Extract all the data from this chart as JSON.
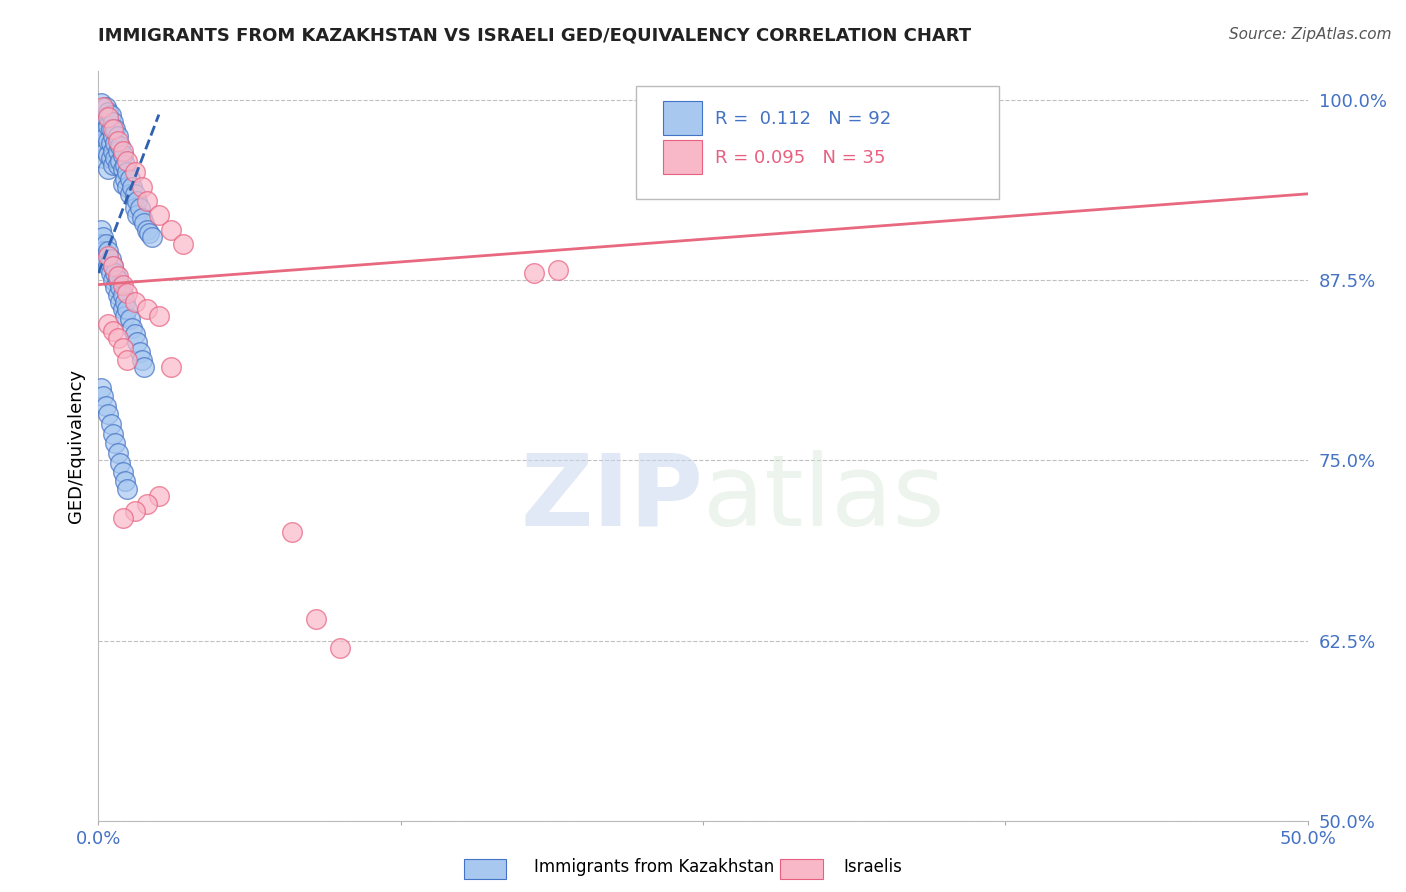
{
  "title": "IMMIGRANTS FROM KAZAKHSTAN VS ISRAELI GED/EQUIVALENCY CORRELATION CHART",
  "source_text": "Source: ZipAtlas.com",
  "ylabel": "GED/Equivalency",
  "xlim": [
    0.0,
    0.5
  ],
  "ylim": [
    0.5,
    1.02
  ],
  "xticks": [
    0.0,
    0.125,
    0.25,
    0.375,
    0.5
  ],
  "xticklabels": [
    "0.0%",
    "",
    "",
    "",
    "50.0%"
  ],
  "yticks": [
    0.5,
    0.625,
    0.75,
    0.875,
    1.0
  ],
  "yticklabels": [
    "50.0%",
    "62.5%",
    "75.0%",
    "87.5%",
    "100.0%"
  ],
  "watermark_zip": "ZIP",
  "watermark_atlas": "atlas",
  "blue_color": "#a8c8f0",
  "blue_edge_color": "#4472c4",
  "pink_color": "#f8b8c8",
  "pink_edge_color": "#e86080",
  "blue_line_color": "#3060b0",
  "pink_line_color": "#e86880",
  "grid_color": "#c0c0c0",
  "axis_label_color": "#4472c4",
  "title_color": "#222222",
  "source_color": "#555555",
  "blue_scatter_x": [
    0.001,
    0.001,
    0.002,
    0.002,
    0.002,
    0.003,
    0.003,
    0.003,
    0.003,
    0.004,
    0.004,
    0.004,
    0.004,
    0.004,
    0.005,
    0.005,
    0.005,
    0.005,
    0.006,
    0.006,
    0.006,
    0.006,
    0.007,
    0.007,
    0.007,
    0.008,
    0.008,
    0.008,
    0.009,
    0.009,
    0.01,
    0.01,
    0.01,
    0.011,
    0.011,
    0.012,
    0.012,
    0.013,
    0.013,
    0.014,
    0.015,
    0.015,
    0.016,
    0.016,
    0.017,
    0.018,
    0.019,
    0.02,
    0.021,
    0.022,
    0.001,
    0.001,
    0.002,
    0.002,
    0.003,
    0.003,
    0.004,
    0.004,
    0.005,
    0.005,
    0.006,
    0.006,
    0.007,
    0.007,
    0.008,
    0.008,
    0.009,
    0.009,
    0.01,
    0.01,
    0.011,
    0.011,
    0.012,
    0.013,
    0.014,
    0.015,
    0.016,
    0.017,
    0.018,
    0.019,
    0.001,
    0.002,
    0.003,
    0.004,
    0.005,
    0.006,
    0.007,
    0.008,
    0.009,
    0.01,
    0.011,
    0.012
  ],
  "blue_scatter_y": [
    0.998,
    0.985,
    0.978,
    0.97,
    0.96,
    0.995,
    0.988,
    0.975,
    0.965,
    0.992,
    0.982,
    0.972,
    0.962,
    0.952,
    0.99,
    0.98,
    0.97,
    0.96,
    0.985,
    0.975,
    0.965,
    0.955,
    0.98,
    0.97,
    0.96,
    0.975,
    0.965,
    0.955,
    0.968,
    0.958,
    0.962,
    0.952,
    0.942,
    0.955,
    0.945,
    0.95,
    0.94,
    0.945,
    0.935,
    0.94,
    0.935,
    0.925,
    0.93,
    0.92,
    0.925,
    0.918,
    0.915,
    0.91,
    0.908,
    0.905,
    0.91,
    0.9,
    0.905,
    0.895,
    0.9,
    0.89,
    0.895,
    0.885,
    0.89,
    0.88,
    0.885,
    0.875,
    0.88,
    0.87,
    0.875,
    0.865,
    0.87,
    0.86,
    0.865,
    0.855,
    0.86,
    0.85,
    0.855,
    0.848,
    0.842,
    0.838,
    0.832,
    0.825,
    0.82,
    0.815,
    0.8,
    0.795,
    0.788,
    0.782,
    0.775,
    0.768,
    0.762,
    0.755,
    0.748,
    0.742,
    0.736,
    0.73
  ],
  "pink_scatter_x": [
    0.002,
    0.004,
    0.006,
    0.008,
    0.01,
    0.012,
    0.015,
    0.018,
    0.02,
    0.025,
    0.03,
    0.035,
    0.004,
    0.006,
    0.008,
    0.01,
    0.012,
    0.015,
    0.02,
    0.025,
    0.004,
    0.006,
    0.008,
    0.01,
    0.012,
    0.03,
    0.025,
    0.02,
    0.015,
    0.01,
    0.18,
    0.19,
    0.08,
    0.09,
    0.1
  ],
  "pink_scatter_y": [
    0.995,
    0.988,
    0.98,
    0.972,
    0.965,
    0.958,
    0.95,
    0.94,
    0.93,
    0.92,
    0.91,
    0.9,
    0.892,
    0.885,
    0.878,
    0.872,
    0.866,
    0.86,
    0.855,
    0.85,
    0.845,
    0.84,
    0.835,
    0.828,
    0.82,
    0.815,
    0.725,
    0.72,
    0.715,
    0.71,
    0.88,
    0.882,
    0.7,
    0.64,
    0.62
  ],
  "blue_trend_x0": 0.0,
  "blue_trend_y0": 0.88,
  "blue_trend_x1": 0.025,
  "blue_trend_y1": 0.99,
  "pink_trend_x0": 0.0,
  "pink_trend_y0": 0.872,
  "pink_trend_x1": 0.5,
  "pink_trend_y1": 0.935
}
